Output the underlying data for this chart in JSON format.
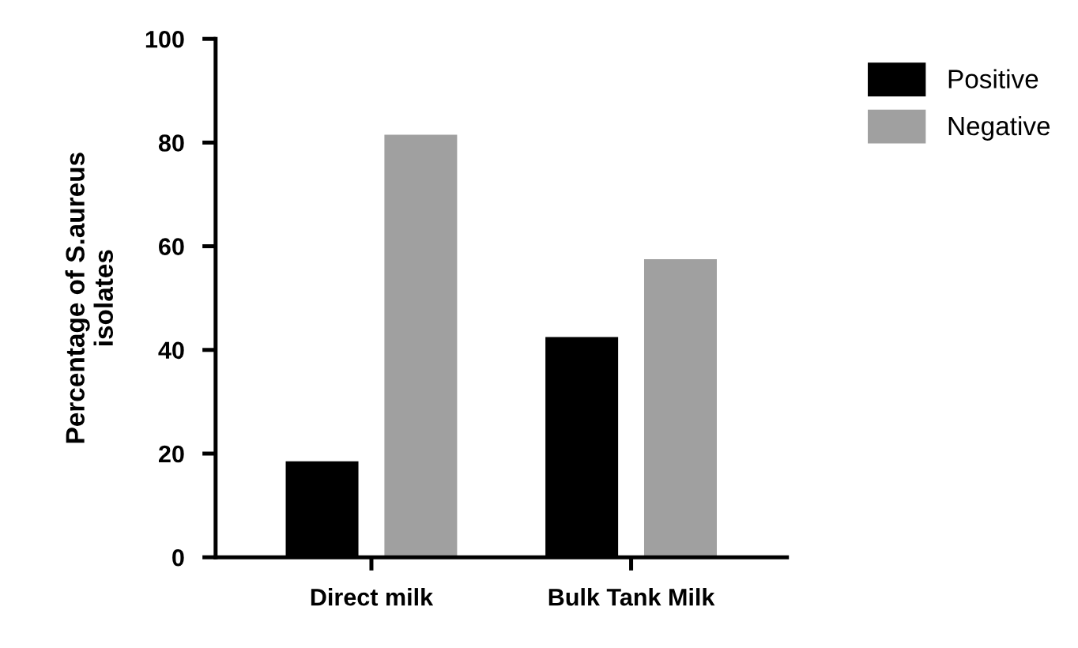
{
  "chart_data": {
    "type": "bar",
    "ylabel": "Percentage of S.aureus\nisolates",
    "categories": [
      "Direct milk",
      "Bulk Tank Milk"
    ],
    "series": [
      {
        "name": "Positive",
        "color": "#000000",
        "values": [
          18.5,
          42.5
        ]
      },
      {
        "name": "Negative",
        "color": "#a0a0a0",
        "values": [
          81.5,
          57.5
        ]
      }
    ],
    "ylim": [
      0,
      100
    ],
    "yticks": [
      0,
      20,
      40,
      60,
      80,
      100
    ],
    "grid": false,
    "legend": "top right"
  }
}
